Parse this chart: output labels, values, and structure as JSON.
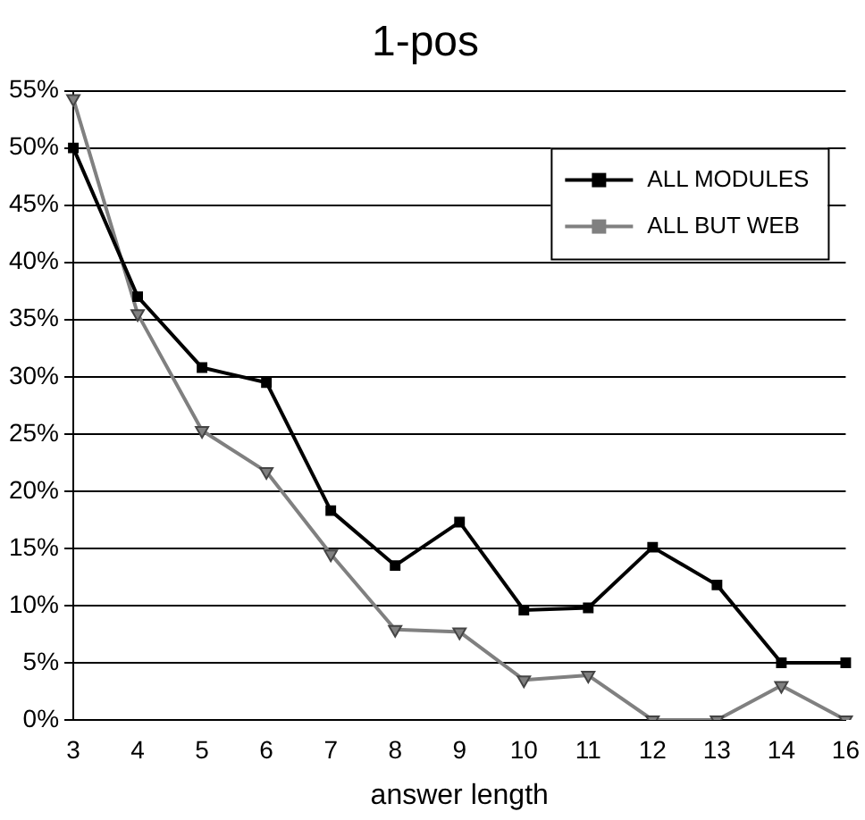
{
  "chart_data": {
    "type": "line",
    "title": "1-pos",
    "xlabel": "answer length",
    "categories": [
      "3",
      "4",
      "5",
      "6",
      "7",
      "8",
      "9",
      "10",
      "11",
      "12",
      "13",
      "14",
      "16"
    ],
    "series": [
      {
        "name": "ALL MODULES",
        "color": "#000000",
        "marker": "square",
        "values": [
          50,
          37,
          30.8,
          29.5,
          18.3,
          13.5,
          17.3,
          9.6,
          9.8,
          15.1,
          11.8,
          5,
          5
        ]
      },
      {
        "name": "ALL BUT WEB",
        "color": "#808080",
        "marker": "triangle",
        "values": [
          54.3,
          35.5,
          25.3,
          21.7,
          14.5,
          7.9,
          7.7,
          3.5,
          3.9,
          0,
          0,
          3,
          0
        ]
      }
    ],
    "ylim": [
      0,
      55
    ],
    "yticks": [
      {
        "value": 0,
        "label": "0%"
      },
      {
        "value": 5,
        "label": "5%"
      },
      {
        "value": 10,
        "label": "10%"
      },
      {
        "value": 15,
        "label": "15%"
      },
      {
        "value": 20,
        "label": "20%"
      },
      {
        "value": 25,
        "label": "25%"
      },
      {
        "value": 30,
        "label": "30%"
      },
      {
        "value": 35,
        "label": "35%"
      },
      {
        "value": 40,
        "label": "40%"
      },
      {
        "value": 45,
        "label": "45%"
      },
      {
        "value": 50,
        "label": "50%"
      },
      {
        "value": 55,
        "label": "55%"
      }
    ],
    "grid": "y",
    "legend": "top right",
    "line_style": "solid"
  }
}
